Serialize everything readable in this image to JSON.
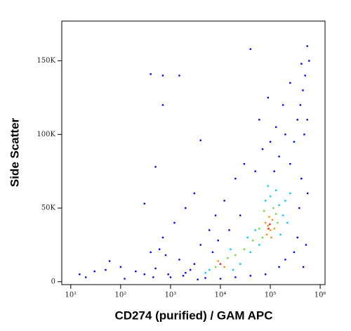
{
  "chart_data": {
    "type": "scatter",
    "x_label": "CD274 (purified) / GAM APC",
    "y_label": "Side Scatter",
    "x_log": true,
    "xlim": [
      6.6,
      1250000
    ],
    "ylim": [
      -2000,
      177000
    ],
    "xticks": [
      {
        "value": 10,
        "label": "10¹"
      },
      {
        "value": 100,
        "label": "10²"
      },
      {
        "value": 1000,
        "label": "10³"
      },
      {
        "value": 10000,
        "label": "10⁴"
      },
      {
        "value": 100000,
        "label": "10⁵"
      },
      {
        "value": 1000000,
        "label": "10⁶"
      }
    ],
    "yticks": [
      0,
      {
        "value": 50000,
        "label": "50K"
      },
      {
        "value": 100000,
        "label": "100K"
      },
      {
        "value": 150000,
        "label": "150K"
      }
    ],
    "grid": false,
    "series": [
      {
        "color": "#0000ff",
        "x": [
          300,
          500,
          200,
          1000,
          2000,
          3000,
          1500,
          800,
          600,
          400,
          100,
          60,
          30,
          15,
          250000,
          300000,
          350000,
          400000,
          200000,
          150000,
          120000,
          450000,
          500000,
          480000,
          420000,
          380000,
          350000,
          300000,
          200000,
          150000,
          80000,
          40000,
          20000,
          10000,
          5000,
          3500,
          2500,
          4000,
          6000,
          8000,
          3000,
          2000,
          1200,
          700,
          12000,
          20000,
          30000,
          50000,
          70000,
          100000,
          60000,
          180000,
          250000,
          550000,
          420000,
          40000,
          400,
          700,
          1500,
          500,
          300,
          700,
          4000,
          90000,
          130000,
          550000,
          560000,
          520000,
          460000,
          600000,
          25000,
          15000,
          9000,
          7000,
          1800,
          900,
          450,
          120,
          50,
          20
        ],
        "values": [
          5000,
          9000,
          7000,
          3000,
          6000,
          12000,
          15000,
          18000,
          22000,
          20000,
          10000,
          14000,
          7000,
          5000,
          80000,
          95000,
          110000,
          120000,
          100000,
          85000,
          75000,
          130000,
          140000,
          100000,
          70000,
          50000,
          30000,
          20000,
          15000,
          10000,
          5000,
          4000,
          3000,
          2000,
          2500,
          1500,
          8000,
          25000,
          35000,
          45000,
          60000,
          50000,
          40000,
          30000,
          55000,
          70000,
          80000,
          75000,
          90000,
          95000,
          110000,
          120000,
          135000,
          160000,
          148000,
          158000,
          141000,
          140000,
          140000,
          78000,
          53000,
          120000,
          96000,
          125000,
          105000,
          110000,
          60000,
          25000,
          10000,
          150000,
          45000,
          35000,
          28000,
          20000,
          4000,
          5000,
          3000,
          2000,
          8000,
          3000
        ]
      },
      {
        "color": "#00c8ff",
        "x": [
          40000,
          50000,
          150000,
          160000,
          180000,
          100000,
          130000,
          6000,
          25000,
          35000,
          60000,
          200000,
          80000,
          18000,
          5000,
          16000,
          250000,
          220000,
          90000
        ],
        "values": [
          20000,
          35000,
          52000,
          32000,
          45000,
          58000,
          62000,
          8000,
          12000,
          30000,
          25000,
          55000,
          55000,
          8000,
          6000,
          22000,
          60000,
          40000,
          65000
        ]
      },
      {
        "color": "#66dd33",
        "x": [
          70000,
          130000,
          60000,
          140000,
          75000,
          115000,
          14000,
          8000,
          20000,
          30000,
          45000
        ],
        "values": [
          30000,
          46000,
          36000,
          40000,
          48000,
          50000,
          16000,
          10000,
          18000,
          22000,
          28000
        ]
      },
      {
        "color": "#ff8c00",
        "x": [
          90000,
          100000,
          110000,
          80000,
          95000,
          120000,
          85000,
          105000,
          12000,
          9000
        ],
        "values": [
          38000,
          35000,
          42000,
          40000,
          44000,
          36000,
          32000,
          30000,
          10000,
          14000
        ]
      },
      {
        "color": "#e31a1c",
        "x": [
          98000,
          92000,
          10000
        ],
        "values": [
          39000,
          36000,
          12000
        ]
      }
    ]
  }
}
